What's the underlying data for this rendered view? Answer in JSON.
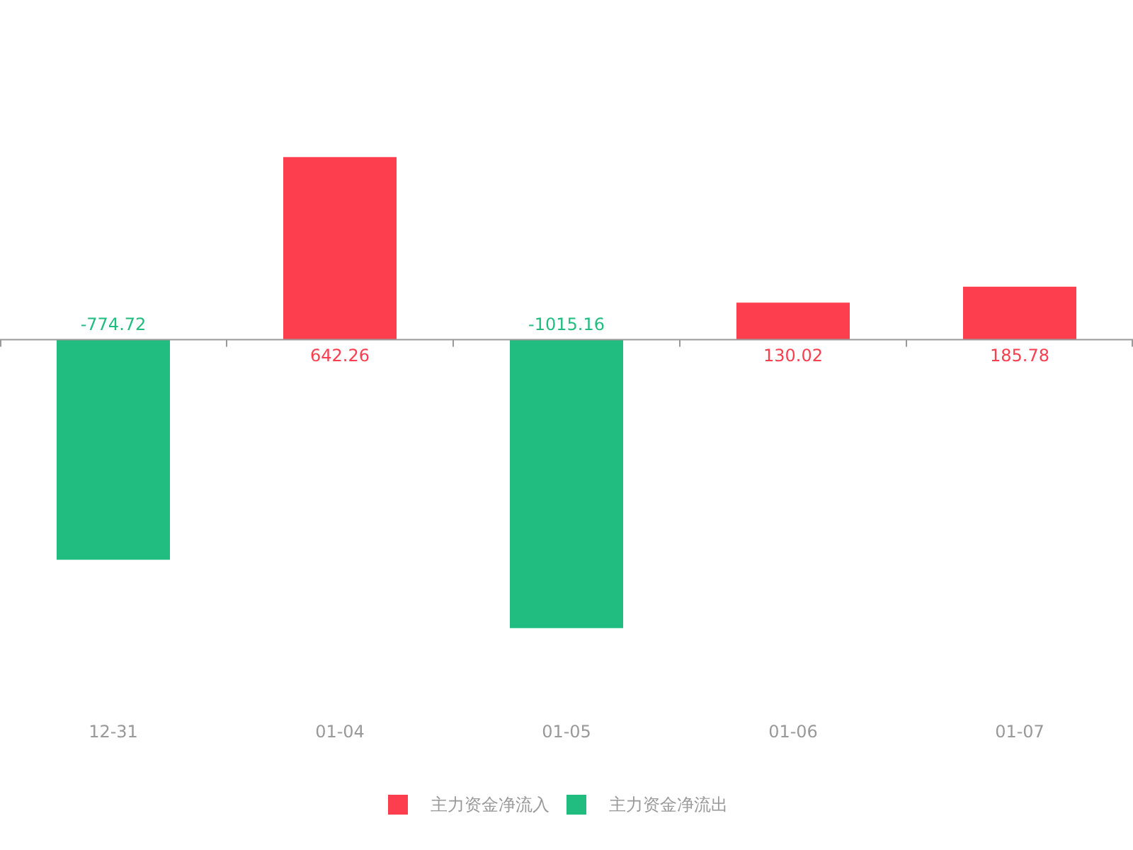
{
  "chart_data": {
    "type": "bar",
    "categories": [
      "12-31",
      "01-04",
      "01-05",
      "01-06",
      "01-07"
    ],
    "series": [
      {
        "name": "主力资金净流入",
        "color": "#fc3e4e",
        "values": [
          null,
          642.26,
          null,
          130.02,
          185.78
        ]
      },
      {
        "name": "主力资金净流出",
        "color": "#21bc7f",
        "values": [
          -774.72,
          null,
          -1015.16,
          null,
          null
        ]
      }
    ],
    "data_labels": true,
    "legend": "bottom"
  }
}
